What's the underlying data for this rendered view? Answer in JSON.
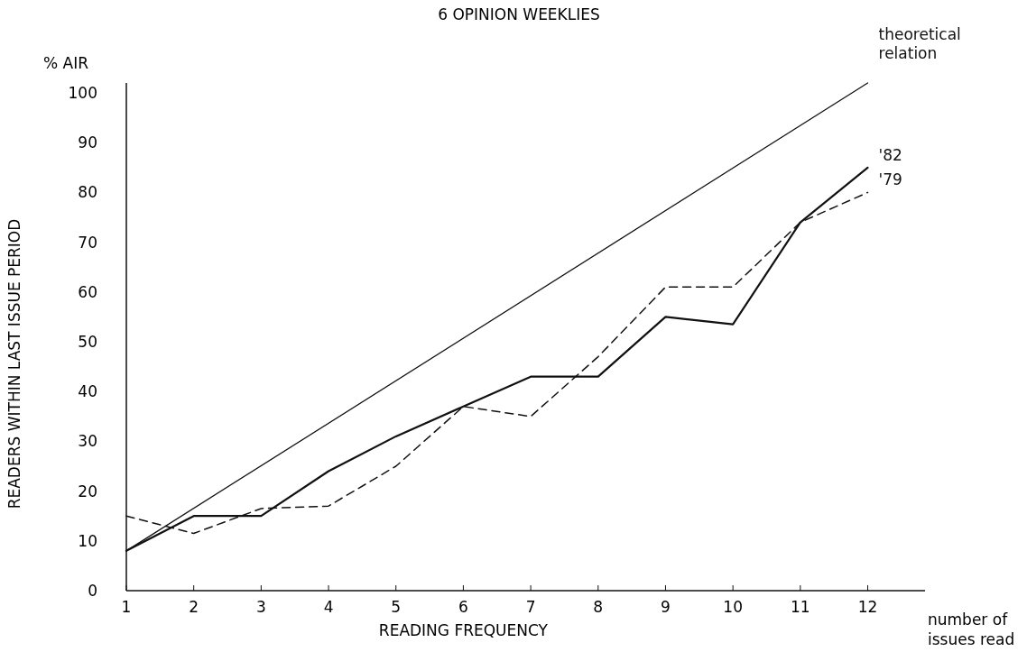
{
  "chart_data": {
    "type": "line",
    "title": "6 OPINION WEEKLIES",
    "xlabel": "READING FREQUENCY",
    "ylabel": "READERS WITHIN LAST ISSUE PERIOD",
    "annotations": [
      "% AIR",
      "number of issues read"
    ],
    "x": [
      1,
      2,
      3,
      4,
      5,
      6,
      7,
      8,
      9,
      10,
      11,
      12
    ],
    "series": [
      {
        "name": "theoretical relation",
        "color": "#111111",
        "x": [
          1,
          12
        ],
        "values": [
          8,
          102
        ],
        "line_style": "solid"
      },
      {
        "name": "'82",
        "color": "#111111",
        "values": [
          8,
          15,
          15,
          24,
          31,
          37,
          43,
          43,
          55,
          53.5,
          74,
          85
        ],
        "line_style": "solid"
      },
      {
        "name": "'79",
        "color": "#111111",
        "values": [
          15,
          11.5,
          16.5,
          17,
          25,
          37,
          35,
          47,
          61,
          61,
          74,
          80
        ],
        "line_style": "dashed"
      }
    ],
    "xlim": [
      1,
      12.85
    ],
    "xticks": [
      1,
      2,
      3,
      4,
      5,
      6,
      7,
      8,
      9,
      10,
      11,
      12
    ],
    "ylim": [
      0,
      102
    ],
    "yticks": [
      0,
      10,
      20,
      30,
      40,
      50,
      60,
      70,
      80,
      90,
      100
    ],
    "grid": false,
    "marker": "none"
  }
}
